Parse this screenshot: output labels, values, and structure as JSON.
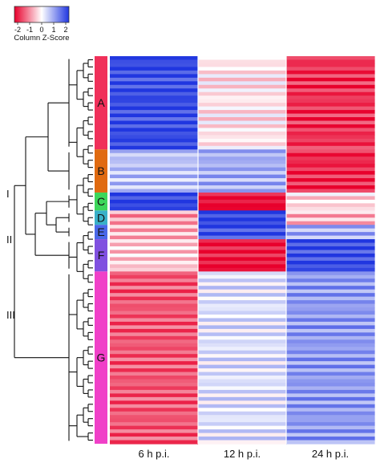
{
  "chart_data": {
    "type": "heatmap",
    "columns": [
      "6 h p.i.",
      "12 h p.i.",
      "24 h p.i."
    ],
    "color_key": {
      "label": "Column Z-Score",
      "ticks": [
        "-2",
        "-1",
        "0",
        "1",
        "2"
      ],
      "range": [
        -2,
        2
      ],
      "low_color": "#e8002c",
      "mid_color": "#ffffff",
      "high_color": "#2036e0"
    },
    "clusters": [
      {
        "label": "A",
        "color": "#f0305a",
        "rows": 26,
        "values": [
          1.8,
          -0.2,
          -1.6
        ]
      },
      {
        "label": "B",
        "color": "#e06a10",
        "rows": 12,
        "values": [
          0.6,
          0.8,
          -1.7
        ]
      },
      {
        "label": "C",
        "color": "#3cd65a",
        "rows": 5,
        "values": [
          1.9,
          -2.0,
          -0.3
        ]
      },
      {
        "label": "D",
        "color": "#39b0c8",
        "rows": 4,
        "values": [
          -0.8,
          2.0,
          -0.6
        ]
      },
      {
        "label": "E",
        "color": "#4a68e8",
        "rows": 4,
        "values": [
          -0.6,
          1.8,
          0.8
        ]
      },
      {
        "label": "F",
        "color": "#8050e0",
        "rows": 9,
        "values": [
          -0.4,
          -1.9,
          1.8
        ]
      },
      {
        "label": "G",
        "color": "#f040c8",
        "rows": 48,
        "values": [
          -1.3,
          0.3,
          1.0
        ]
      }
    ],
    "dendrogram_groups": [
      "I",
      "II",
      "III"
    ]
  }
}
